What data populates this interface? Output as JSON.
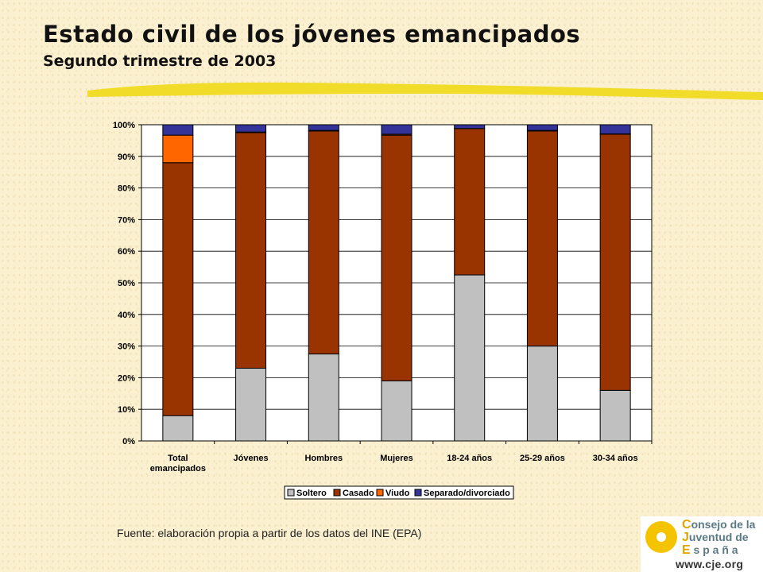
{
  "header": {
    "title": "Estado civil de los jóvenes emancipados",
    "subtitle": "Segundo trimestre de 2003"
  },
  "colors": {
    "accent_stroke": "#f2dc2a",
    "soltero": "#c0c0c0",
    "casado": "#993300",
    "viudo": "#ff6600",
    "separado": "#333399"
  },
  "chart_data": {
    "type": "bar",
    "stacked": true,
    "percent": true,
    "title": "",
    "xlabel": "",
    "ylabel": "",
    "ylim": [
      0,
      100
    ],
    "yticks": [
      "0%",
      "10%",
      "20%",
      "30%",
      "40%",
      "50%",
      "60%",
      "70%",
      "80%",
      "90%",
      "100%"
    ],
    "grid": true,
    "legend_position": "bottom",
    "categories": [
      [
        "Total",
        "emancipados"
      ],
      [
        "Jóvenes"
      ],
      [
        "Hombres"
      ],
      [
        "Mujeres"
      ],
      [
        "18-24 años"
      ],
      [
        "25-29 años"
      ],
      [
        "30-34 años"
      ]
    ],
    "series": [
      {
        "name": "Soltero",
        "color": "#c0c0c0",
        "values": [
          8,
          23,
          27.5,
          19,
          52.5,
          30,
          16
        ]
      },
      {
        "name": "Casado",
        "color": "#993300",
        "values": [
          80,
          74.5,
          70.5,
          77.7,
          46.3,
          68,
          81
        ]
      },
      {
        "name": "Viudo",
        "color": "#ff6600",
        "values": [
          8.7,
          0.2,
          0.2,
          0.3,
          0,
          0.2,
          0.1
        ]
      },
      {
        "name": "Separado/divorciado",
        "color": "#333399",
        "values": [
          3.3,
          2.3,
          1.8,
          3,
          1.2,
          1.8,
          2.9
        ]
      }
    ]
  },
  "footer": {
    "source": "Fuente: elaboración propia a partir de los datos del INE (EPA)"
  },
  "logo": {
    "lines": [
      {
        "cap": "C",
        "rest": "onsejo de la"
      },
      {
        "cap": "J",
        "rest": "uventud de"
      },
      {
        "cap": "E",
        "rest": " s p a ñ a"
      }
    ],
    "url": "www.cje.org"
  }
}
